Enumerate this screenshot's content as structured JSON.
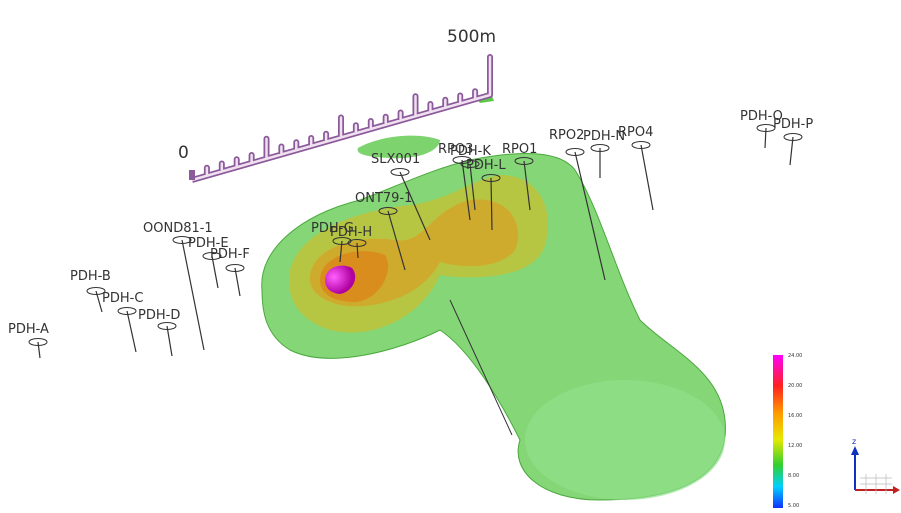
{
  "scale_bar": {
    "start": "0",
    "end": "500m"
  },
  "drill_holes": [
    "PDH-A",
    "PDH-B",
    "PDH-C",
    "PDH-D",
    "OOND81-1",
    "PDH-E",
    "PDH-F",
    "PDH-G",
    "PDH-H",
    "ONT79-1",
    "SLX001",
    "RPO3",
    "PDH-K",
    "PDH-L",
    "RPO1",
    "RPO2",
    "PDH-N",
    "RPO4",
    "PDH-O",
    "PDH-P"
  ],
  "legend": {
    "labels": [
      "24.00",
      "20.00",
      "16.00",
      "12.00",
      "8.00",
      "5.00"
    ]
  },
  "axis_triad": {
    "z": "z"
  }
}
